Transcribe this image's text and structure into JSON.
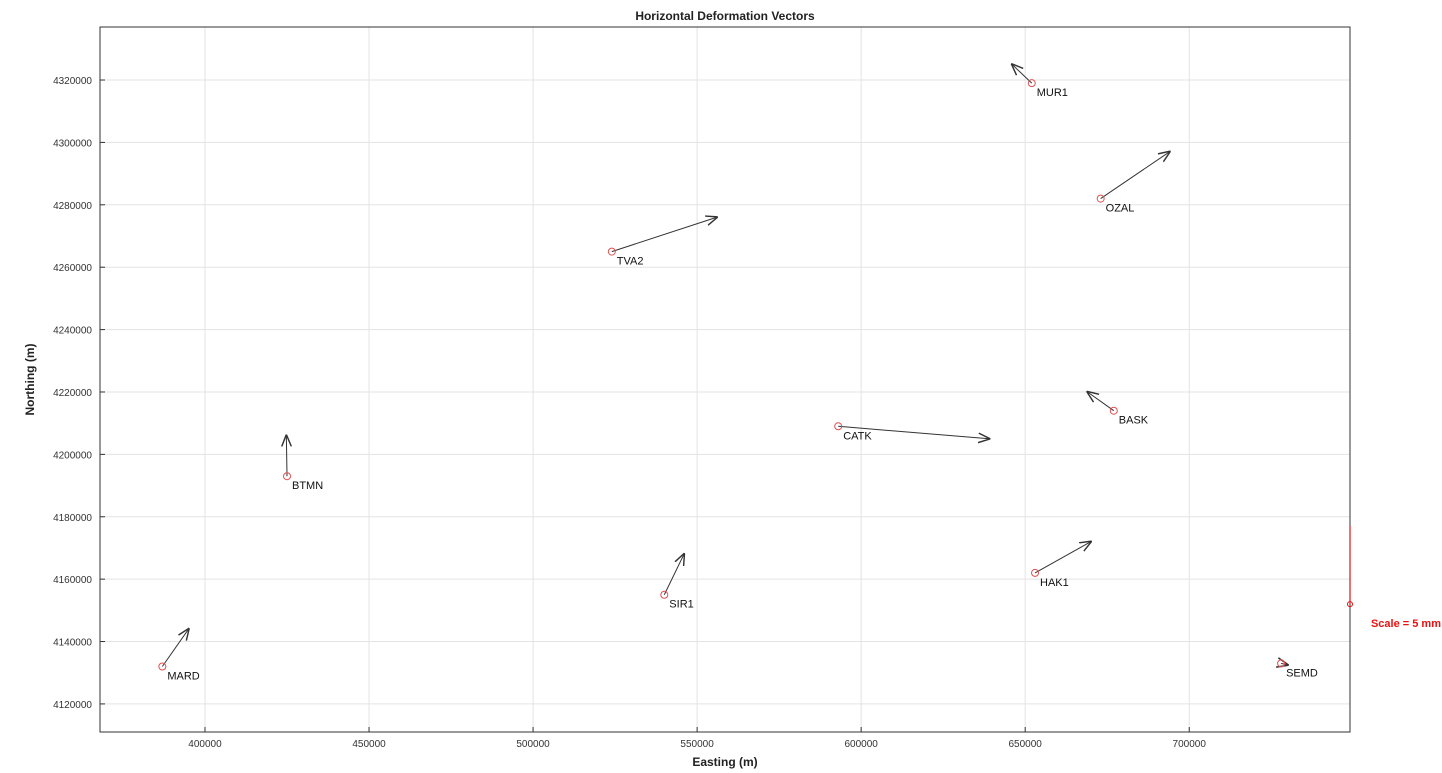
{
  "chart_data": {
    "type": "scatter",
    "title": "Horizontal Deformation Vectors",
    "xlabel": "Easting (m)",
    "ylabel": "Northing (m)",
    "xlim": [
      368000,
      749000
    ],
    "ylim": [
      4111000,
      4337000
    ],
    "xticks": [
      400000,
      450000,
      500000,
      550000,
      600000,
      650000,
      700000
    ],
    "yticks": [
      4120000,
      4140000,
      4160000,
      4180000,
      4200000,
      4220000,
      4240000,
      4260000,
      4280000,
      4300000,
      4320000
    ],
    "grid": true,
    "stations": [
      {
        "name": "MUR1",
        "easting": 652000,
        "northing": 4319000,
        "end_easting": 646000,
        "end_northing": 4325000
      },
      {
        "name": "OZAL",
        "easting": 673000,
        "northing": 4282000,
        "end_easting": 694000,
        "end_northing": 4297000
      },
      {
        "name": "TVA2",
        "easting": 524000,
        "northing": 4265000,
        "end_easting": 556000,
        "end_northing": 4276000
      },
      {
        "name": "BASK",
        "easting": 677000,
        "northing": 4214000,
        "end_easting": 669000,
        "end_northing": 4220000
      },
      {
        "name": "CATK",
        "easting": 593000,
        "northing": 4209000,
        "end_easting": 639000,
        "end_northing": 4205000
      },
      {
        "name": "BTMN",
        "easting": 425000,
        "northing": 4193000,
        "end_easting": 424800,
        "end_northing": 4206000
      },
      {
        "name": "HAK1",
        "easting": 653000,
        "northing": 4162000,
        "end_easting": 670000,
        "end_northing": 4172000
      },
      {
        "name": "SIR1",
        "easting": 540000,
        "northing": 4155000,
        "end_easting": 546000,
        "end_northing": 4168000
      },
      {
        "name": "MARD",
        "easting": 387000,
        "northing": 4132000,
        "end_easting": 395000,
        "end_northing": 4144000
      },
      {
        "name": "SEMD",
        "easting": 728000,
        "northing": 4133000,
        "end_easting": 730000,
        "end_northing": 4132500
      }
    ],
    "scale_bar": {
      "label": "Scale = 5 mm",
      "easting": 749000,
      "northing_bottom": 4152000,
      "northing_top": 4177000,
      "color": "#e11111"
    },
    "marker_color": "#e05050",
    "vector_color": "#333333"
  }
}
